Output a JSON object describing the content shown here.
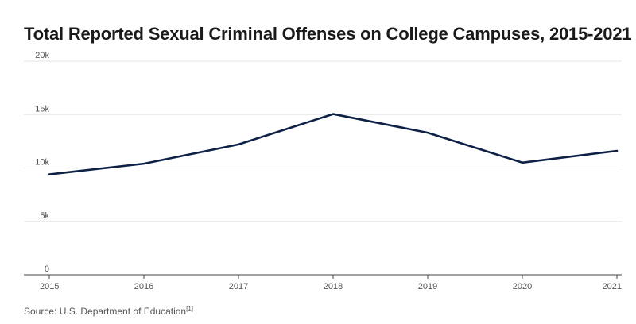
{
  "chart_data": {
    "type": "line",
    "title": "Total Reported Sexual Criminal Offenses on College Campuses, 2015-2021",
    "x": [
      "2015",
      "2016",
      "2017",
      "2018",
      "2019",
      "2020",
      "2021"
    ],
    "series": [
      {
        "values": [
          9400,
          10400,
          12200,
          15050,
          13300,
          10500,
          11600
        ]
      }
    ],
    "ylim": [
      0,
      20000
    ],
    "yticks": [
      0,
      5000,
      10000,
      15000,
      20000
    ],
    "ytick_labels": [
      "0",
      "5k",
      "10k",
      "15k",
      "20k"
    ],
    "xlabel": "",
    "ylabel": "",
    "grid": true,
    "line_color": "#0d2146"
  },
  "source": {
    "text": "Source: U.S. Department of Education",
    "ref": "[1]"
  }
}
